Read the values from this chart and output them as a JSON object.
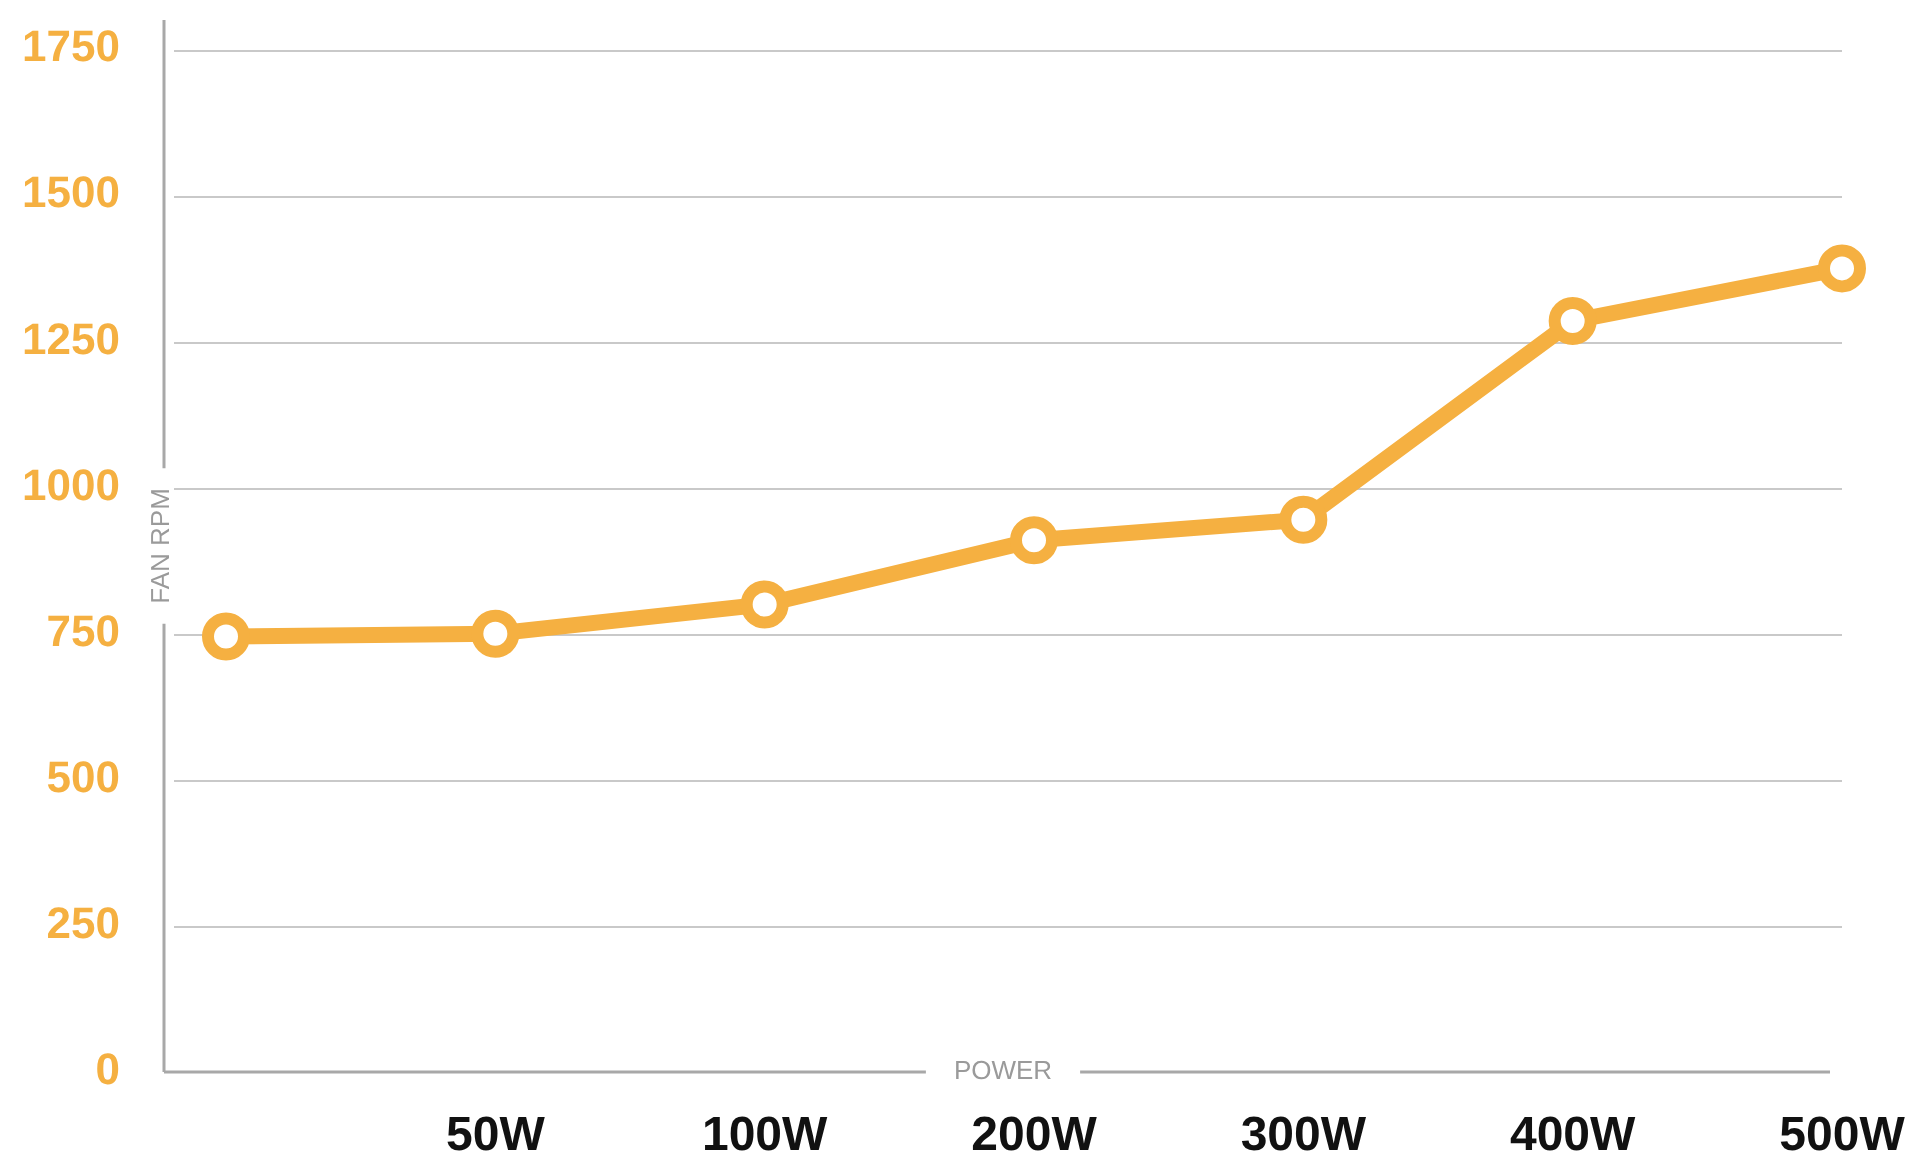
{
  "chart_data": {
    "type": "line",
    "xlabel": "POWER",
    "ylabel": "FAN RPM",
    "categories": [
      null,
      "50W",
      "100W",
      "200W",
      "300W",
      "400W",
      "500W"
    ],
    "series": [
      {
        "color": "#f5b041",
        "values": [
          745,
          750,
          800,
          910,
          945,
          1285,
          1375
        ]
      }
    ],
    "ylim": [
      0,
      1800
    ],
    "yticks": [
      0,
      250,
      500,
      750,
      1000,
      1250,
      1500,
      1750
    ],
    "grid": "y",
    "marker": "circle",
    "line_style": "solid"
  }
}
